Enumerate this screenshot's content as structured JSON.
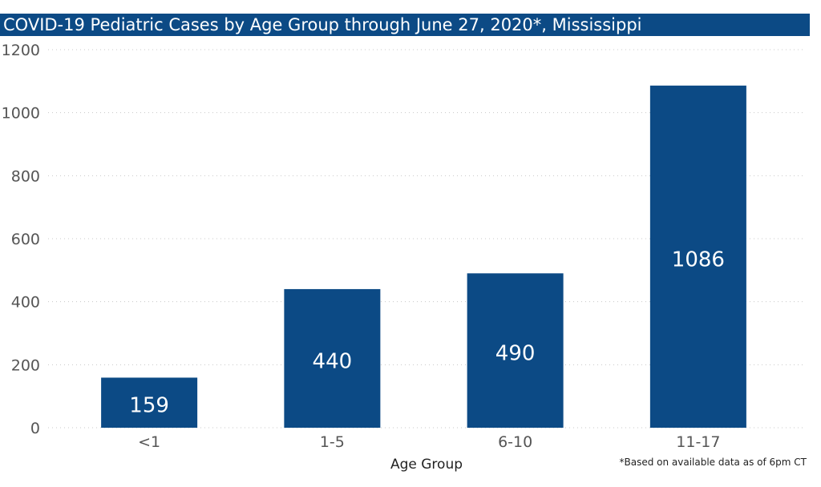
{
  "chart_data": {
    "type": "bar",
    "title": "COVID-19 Pediatric Cases by Age Group through June 27, 2020*, Mississippi",
    "xlabel": "Age Group",
    "ylabel": "",
    "categories": [
      "<1",
      "1-5",
      "6-10",
      "11-17"
    ],
    "values": [
      159,
      440,
      490,
      1086
    ],
    "data_labels": [
      "159",
      "440",
      "490",
      "1086"
    ],
    "yticks": [
      "0",
      "200",
      "400",
      "600",
      "800",
      "1000",
      "1200"
    ],
    "ylim": [
      0,
      1200
    ],
    "grid": true,
    "bar_color": "#0c4a85",
    "label_color": "#ffffff"
  },
  "footnote": "*Based on available data as of 6pm CT"
}
